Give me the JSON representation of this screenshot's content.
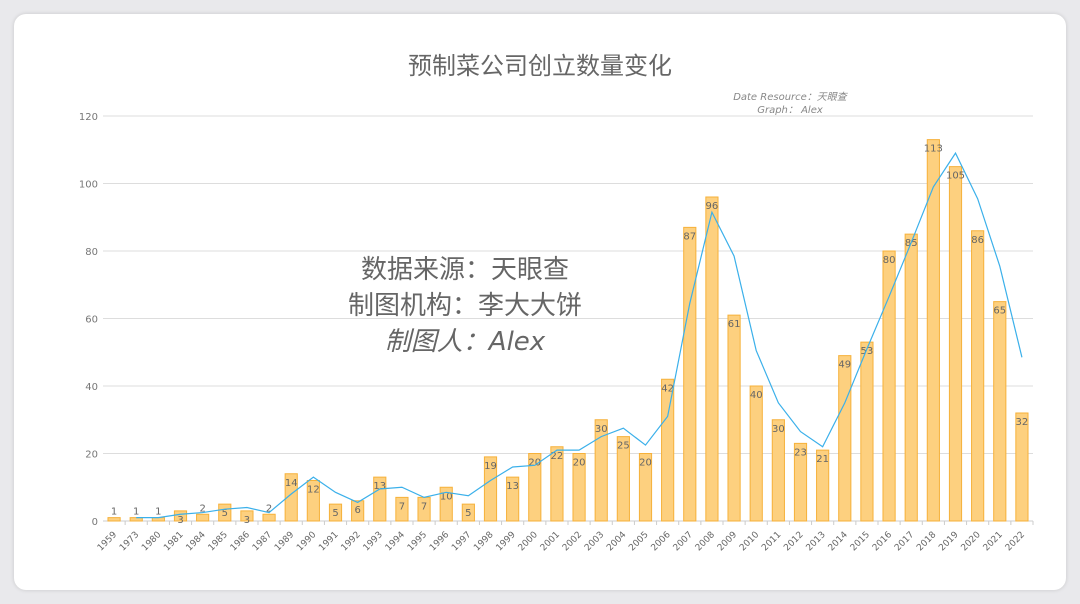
{
  "chart_data": {
    "type": "bar",
    "title": "预制菜公司创立数量变化",
    "source_line": "Date Resource：天眼查",
    "graph_line": "Graph： Alex",
    "watermark": [
      "数据来源：天眼查",
      "制图机构：李大大饼",
      "制图人：Alex"
    ],
    "categories": [
      "1959",
      "1973",
      "1980",
      "1981",
      "1984",
      "1985",
      "1986",
      "1987",
      "1989",
      "1990",
      "1991",
      "1992",
      "1993",
      "1994",
      "1995",
      "1996",
      "1997",
      "1998",
      "1999",
      "2000",
      "2001",
      "2002",
      "2003",
      "2004",
      "2005",
      "2006",
      "2007",
      "2008",
      "2009",
      "2010",
      "2011",
      "2012",
      "2013",
      "2014",
      "2015",
      "2016",
      "2017",
      "2018",
      "2019",
      "2020",
      "2021",
      "2022"
    ],
    "values": [
      1,
      1,
      1,
      3,
      2,
      5,
      3,
      2,
      14,
      12,
      5,
      6,
      13,
      7,
      7,
      10,
      5,
      19,
      13,
      20,
      22,
      20,
      30,
      25,
      20,
      42,
      87,
      96,
      61,
      40,
      30,
      23,
      21,
      49,
      53,
      80,
      85,
      113,
      105,
      86,
      65,
      32
    ],
    "trendline": "2-period moving average",
    "ylim": [
      0,
      120
    ],
    "yticks": [
      0,
      20,
      40,
      60,
      80,
      100,
      120
    ],
    "grid": true,
    "colors": {
      "bar": "#fdd07f",
      "bar_edge": "#f6b13a",
      "line": "#3bb0ea"
    }
  }
}
